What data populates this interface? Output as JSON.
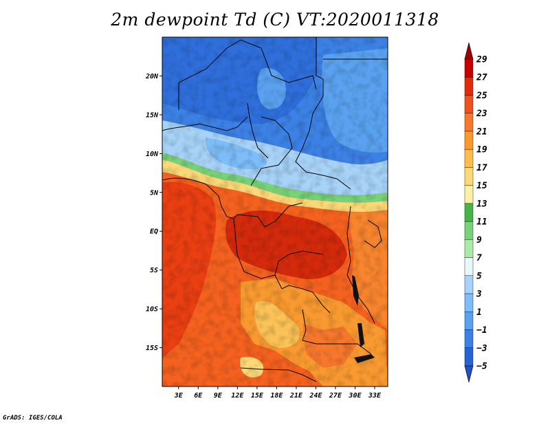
{
  "title": "2m dewpoint Td (C) VT:2020011318",
  "credit": "GrADS: IGES/COLA",
  "map": {
    "lat_labels": [
      "20N",
      "15N",
      "10N",
      "5N",
      "EQ",
      "5S",
      "10S",
      "15S"
    ],
    "lat_values": [
      20,
      15,
      10,
      5,
      0,
      -5,
      -10,
      -15
    ],
    "lon_labels": [
      "3E",
      "6E",
      "9E",
      "12E",
      "15E",
      "18E",
      "21E",
      "24E",
      "27E",
      "30E",
      "33E"
    ],
    "lon_values": [
      3,
      6,
      9,
      12,
      15,
      18,
      21,
      24,
      27,
      30,
      33
    ],
    "lon_range": [
      0.5,
      35
    ],
    "lat_range": [
      -20,
      25
    ]
  },
  "colorbar": {
    "labels": [
      "29",
      "27",
      "25",
      "23",
      "21",
      "19",
      "17",
      "15",
      "13",
      "11",
      "9",
      "7",
      "5",
      "3",
      "1",
      "−1",
      "−3",
      "−5"
    ],
    "colors": [
      "#a00000",
      "#c80000",
      "#e22a0a",
      "#f0501e",
      "#f7782d",
      "#fa9a2d",
      "#fbbd4e",
      "#fcd978",
      "#fcf0a5",
      "#46b446",
      "#78d278",
      "#aaeaaa",
      "#e6f8fa",
      "#a7d3f8",
      "#7dbdf8",
      "#5aa2f0",
      "#3c82e6",
      "#2863d6",
      "#1e4fc3"
    ]
  }
}
